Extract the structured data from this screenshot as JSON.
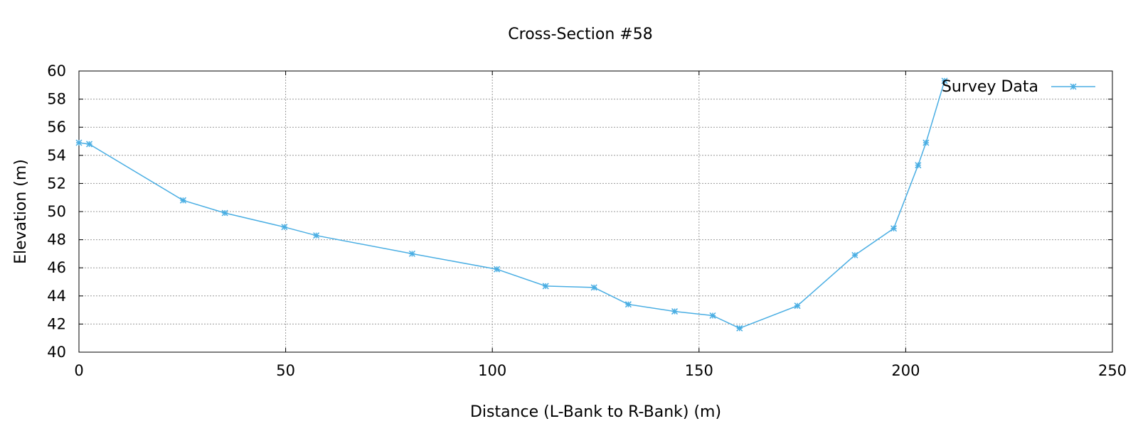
{
  "chart_data": {
    "type": "line",
    "title": "Cross-Section #58",
    "xlabel": "Distance (L-Bank to R-Bank) (m)",
    "ylabel": "Elevation (m)",
    "xlim": [
      0,
      250
    ],
    "ylim": [
      40,
      60
    ],
    "xticks": [
      0,
      50,
      100,
      150,
      200,
      250
    ],
    "yticks": [
      40,
      42,
      44,
      46,
      48,
      50,
      52,
      54,
      56,
      58,
      60
    ],
    "grid": true,
    "legend_position": "top-right",
    "color": "#4aaee3",
    "series": [
      {
        "name": "Survey Data",
        "x": [
          0,
          2.5,
          25.2,
          35.3,
          49.7,
          57.4,
          80.6,
          101.1,
          112.9,
          124.6,
          132.9,
          144.1,
          153.3,
          159.8,
          173.8,
          187.7,
          197.1,
          203.0,
          204.9,
          209.4
        ],
        "y": [
          54.9,
          54.8,
          50.8,
          49.9,
          48.9,
          48.3,
          47.0,
          45.9,
          44.7,
          44.6,
          43.4,
          42.9,
          42.6,
          41.7,
          43.3,
          46.9,
          48.8,
          53.3,
          54.9,
          59.3
        ]
      }
    ]
  }
}
